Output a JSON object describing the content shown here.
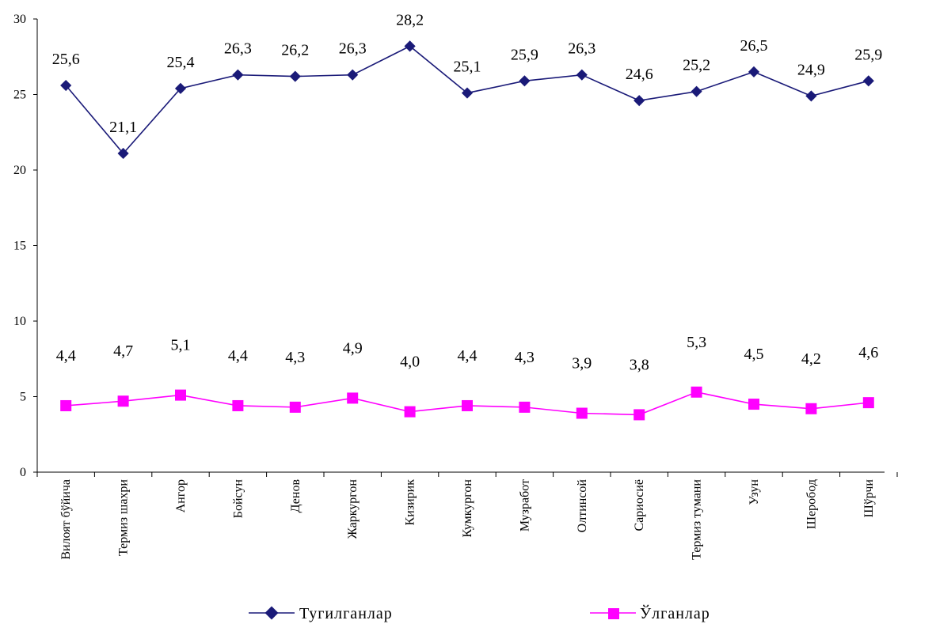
{
  "chart_data": {
    "type": "line",
    "title": "",
    "xlabel": "",
    "ylabel": "",
    "ylim": [
      0,
      30
    ],
    "yticks": [
      0,
      5,
      10,
      15,
      20,
      25,
      30
    ],
    "grid": false,
    "legend_position": "bottom",
    "categories": [
      "Вилоят бўйича",
      "Термиз шахри",
      "Ангор",
      "Бойсун",
      "Денов",
      "Жаркургон",
      "Кизирик",
      "Кумкургон",
      "Музработ",
      "Олтинсой",
      "Сариосиё",
      "Термиз тумани",
      "Узун",
      "Шеробод",
      "Шўрчи"
    ],
    "series": [
      {
        "name": "Тугилганлар",
        "color": "#1a1a78",
        "marker": "diamond",
        "values": [
          25.6,
          21.1,
          25.4,
          26.3,
          26.2,
          26.3,
          28.2,
          25.1,
          25.9,
          26.3,
          24.6,
          25.2,
          26.5,
          24.9,
          25.9
        ],
        "labels": [
          "25,6",
          "21,1",
          "25,4",
          "26,3",
          "26,2",
          "26,3",
          "28,2",
          "25,1",
          "25,9",
          "26,3",
          "24,6",
          "25,2",
          "26,5",
          "24,9",
          "25,9"
        ]
      },
      {
        "name": "Ўлганлар",
        "color": "#ff00ff",
        "marker": "square",
        "values": [
          4.4,
          4.7,
          5.1,
          4.4,
          4.3,
          4.9,
          4.0,
          4.4,
          4.3,
          3.9,
          3.8,
          5.3,
          4.5,
          4.2,
          4.6
        ],
        "labels": [
          "4,4",
          "4,7",
          "5,1",
          "4,4",
          "4,3",
          "4,9",
          "4,0",
          "4,4",
          "4,3",
          "3,9",
          "3,8",
          "5,3",
          "4,5",
          "4,2",
          "4,6"
        ]
      }
    ]
  }
}
